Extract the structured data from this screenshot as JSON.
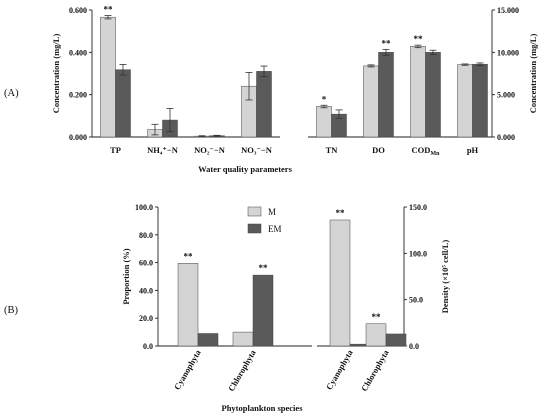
{
  "colors": {
    "M": "#d4d4d4",
    "EM": "#5a5a5a",
    "outline": "#444444"
  },
  "panels": {
    "A": "(A)",
    "B": "(B)"
  },
  "chart_data": [
    {
      "panel": "A",
      "type": "bar",
      "subtype": "grouped-with-error-bars",
      "xlabel": "Water quality parameters",
      "left_axis": {
        "label": "Concentration (mg/L)",
        "ylim": [
          0,
          0.6
        ],
        "ticks": [
          {
            "value": 0,
            "label": "0.000"
          },
          {
            "value": 0.2,
            "label": "0.200"
          },
          {
            "value": 0.4,
            "label": "0.400"
          },
          {
            "value": 0.6,
            "label": "0.600"
          }
        ]
      },
      "right_axis": {
        "label": "Concentration (mg/L)",
        "ylim": [
          0,
          15000
        ],
        "ticks": [
          {
            "value": 0,
            "label": "0.000"
          },
          {
            "value": 5000,
            "label": "5.000"
          },
          {
            "value": 10000,
            "label": "10.000"
          },
          {
            "value": 15000,
            "label": "15.000"
          }
        ]
      },
      "series": [
        {
          "name": "M",
          "color": "#d4d4d4"
        },
        {
          "name": "EM",
          "color": "#5a5a5a"
        }
      ],
      "categories": [
        {
          "label": "TP",
          "axis": "left",
          "M": 0.566,
          "M_err": 0.008,
          "EM": 0.318,
          "EM_err": 0.025,
          "sig_M": "**",
          "sig_EM": ""
        },
        {
          "label": "NH₄⁺−N",
          "axis": "left",
          "M": 0.035,
          "M_err": 0.025,
          "EM": 0.08,
          "EM_err": 0.055,
          "sig_M": "",
          "sig_EM": ""
        },
        {
          "label": "NO₂⁻−N",
          "axis": "left",
          "M": 0.004,
          "M_err": 0.002,
          "EM": 0.006,
          "EM_err": 0.002,
          "sig_M": "",
          "sig_EM": ""
        },
        {
          "label": "NO₃⁻−N",
          "axis": "left",
          "M": 0.24,
          "M_err": 0.065,
          "EM": 0.31,
          "EM_err": 0.025,
          "sig_M": "",
          "sig_EM": ""
        },
        {
          "label": "TN",
          "axis": "right",
          "M": 3600,
          "M_err": 150,
          "EM": 2700,
          "EM_err": 500,
          "sig_M": "*",
          "sig_EM": ""
        },
        {
          "label": "DO",
          "axis": "right",
          "M": 8400,
          "M_err": 120,
          "EM": 10000,
          "EM_err": 350,
          "sig_M": "",
          "sig_EM": "**"
        },
        {
          "label": "COD",
          "label_sub": "Mn",
          "axis": "right",
          "M": 10700,
          "M_err": 150,
          "EM": 10000,
          "EM_err": 250,
          "sig_M": "**",
          "sig_EM": ""
        },
        {
          "label": "pH",
          "axis": "right",
          "M": 8550,
          "M_err": 80,
          "EM": 8600,
          "EM_err": 150,
          "sig_M": "",
          "sig_EM": ""
        }
      ]
    },
    {
      "panel": "B",
      "type": "bar",
      "subtype": "grouped",
      "xlabel": "Phytoplankton species",
      "legend": {
        "position": "top-center",
        "entries": [
          "M",
          "EM"
        ]
      },
      "left_axis": {
        "label": "Proportion (%)",
        "ylim": [
          0,
          100
        ],
        "ticks": [
          {
            "value": 0,
            "label": "0.0"
          },
          {
            "value": 20,
            "label": "20.0"
          },
          {
            "value": 40,
            "label": "40.0"
          },
          {
            "value": 60,
            "label": "60.0"
          },
          {
            "value": 80,
            "label": "80.0"
          },
          {
            "value": 100,
            "label": "100.0"
          }
        ]
      },
      "right_axis": {
        "label": "Density (×10⁵ cell/L)",
        "ylim": [
          0,
          150
        ],
        "ticks": [
          {
            "value": 0,
            "label": "0.0"
          },
          {
            "value": 50,
            "label": "50.0"
          },
          {
            "value": 100,
            "label": "100.0"
          },
          {
            "value": 150,
            "label": "150.0"
          }
        ]
      },
      "series": [
        {
          "name": "M",
          "color": "#d4d4d4"
        },
        {
          "name": "EM",
          "color": "#5a5a5a"
        }
      ],
      "categories": [
        {
          "label": "Cyanophyta",
          "axis": "left",
          "M": 59.5,
          "EM": 9,
          "sig_M": "**",
          "sig_EM": ""
        },
        {
          "label": "Chlorophyta",
          "axis": "left",
          "M": 10,
          "EM": 51,
          "sig_M": "",
          "sig_EM": "**"
        },
        {
          "label": "Cyanophyta",
          "axis": "right",
          "M": 136,
          "EM": 2,
          "sig_M": "**",
          "sig_EM": ""
        },
        {
          "label": "Chlorophyta",
          "axis": "right",
          "M": 24,
          "EM": 13,
          "sig_M": "**",
          "sig_EM": ""
        }
      ]
    }
  ]
}
